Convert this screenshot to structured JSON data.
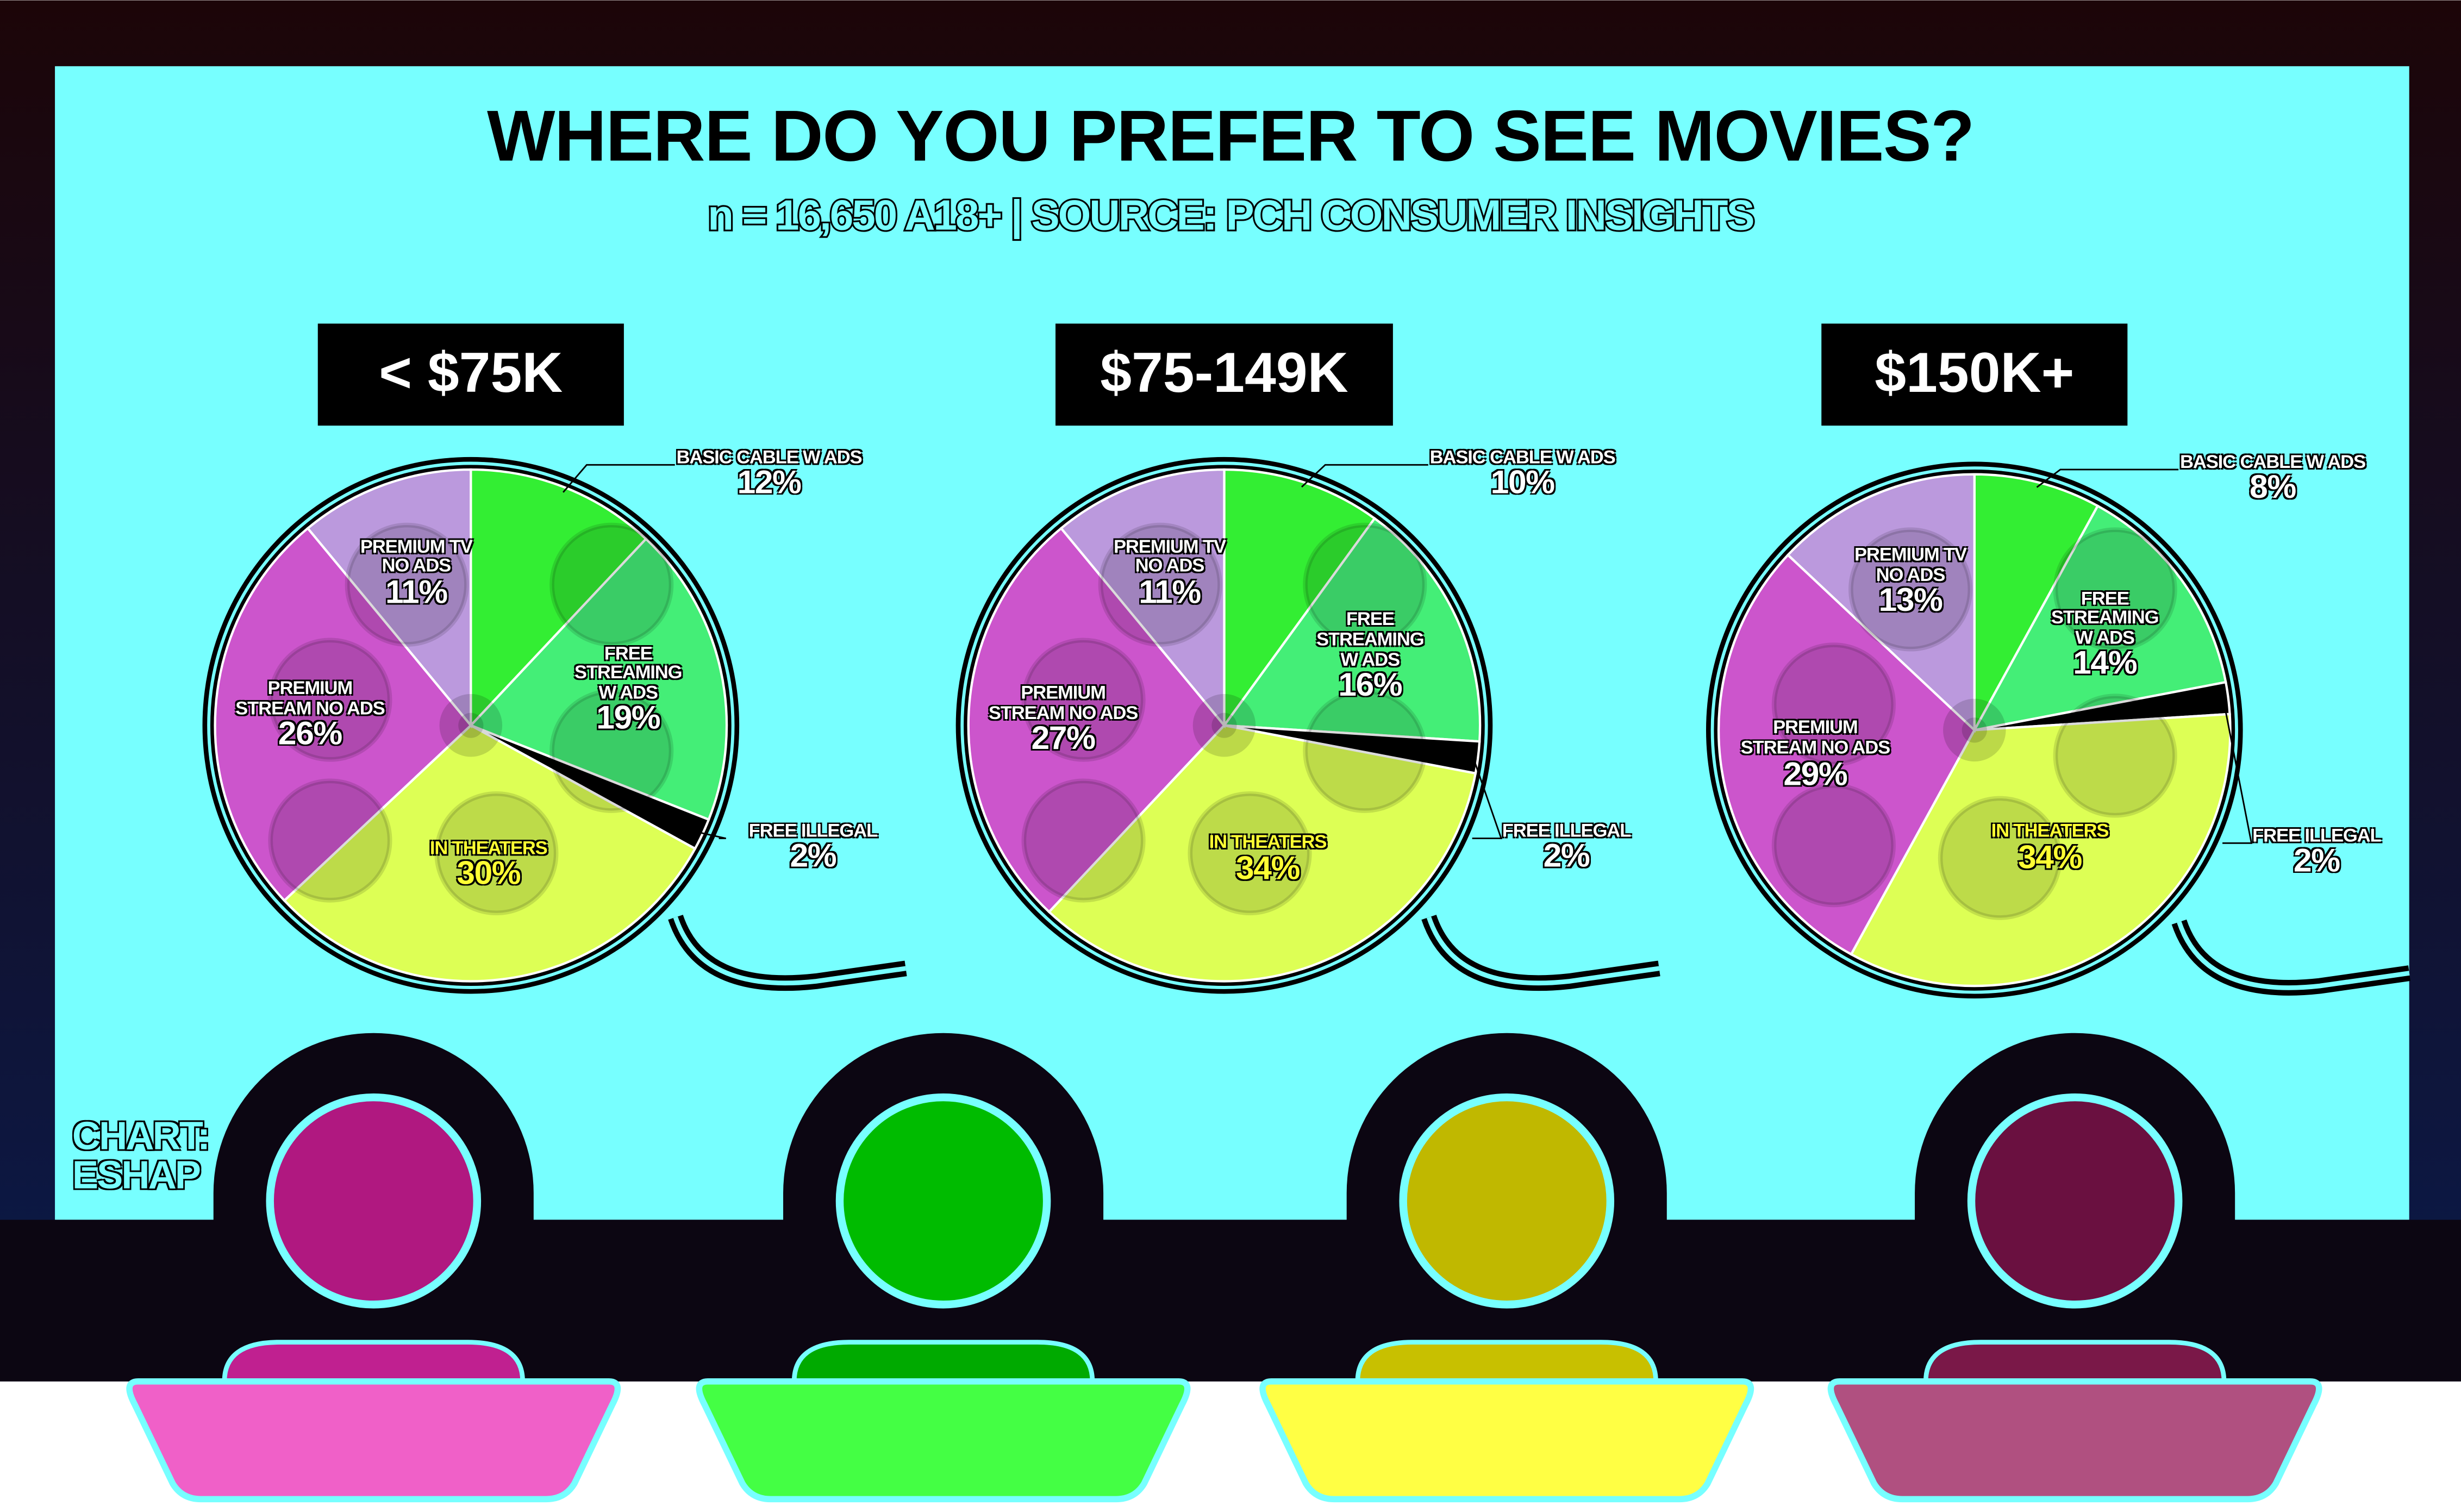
{
  "title": "WHERE DO YOU PREFER TO SEE MOVIES?",
  "subtitle": "n = 16,650 A18+ | SOURCE: PCH CONSUMER INSIGHTS",
  "credit": "CHART: ESHAP",
  "chart_data": [
    {
      "type": "pie",
      "title": "< $75K",
      "categories": [
        "BASIC CABLE W ADS",
        "FREE STREAMING W ADS",
        "FREE ILLEGAL",
        "IN THEATERS",
        "PREMIUM STREAM NO ADS",
        "PREMIUM TV NO ADS"
      ],
      "values": [
        12,
        19,
        2,
        30,
        26,
        11
      ],
      "value_labels": [
        "12%",
        "19%",
        "2%",
        "30%",
        "26%",
        "11%"
      ],
      "colors": [
        "#33ee33",
        "#44ee77",
        "#000000",
        "#ddff55",
        "#cc55cc",
        "#bb99dd"
      ]
    },
    {
      "type": "pie",
      "title": "$75-149K",
      "categories": [
        "BASIC CABLE W ADS",
        "FREE STREAMING W ADS",
        "FREE ILLEGAL",
        "IN THEATERS",
        "PREMIUM STREAM NO ADS",
        "PREMIUM TV NO ADS"
      ],
      "values": [
        10,
        16,
        2,
        34,
        27,
        11
      ],
      "value_labels": [
        "10%",
        "16%",
        "2%",
        "34%",
        "27%",
        "11%"
      ],
      "colors": [
        "#33ee33",
        "#44ee77",
        "#000000",
        "#ddff55",
        "#cc55cc",
        "#bb99dd"
      ]
    },
    {
      "type": "pie",
      "title": "$150K+",
      "categories": [
        "BASIC CABLE W ADS",
        "FREE STREAMING W ADS",
        "FREE ILLEGAL",
        "IN THEATERS",
        "PREMIUM STREAM NO ADS",
        "PREMIUM TV NO ADS"
      ],
      "values": [
        8,
        14,
        2,
        34,
        29,
        13
      ],
      "value_labels": [
        "8%",
        "14%",
        "2%",
        "34%",
        "29%",
        "13%"
      ],
      "colors": [
        "#33ee33",
        "#44ee77",
        "#000000",
        "#ddff55",
        "#cc55cc",
        "#bb99dd"
      ]
    }
  ]
}
